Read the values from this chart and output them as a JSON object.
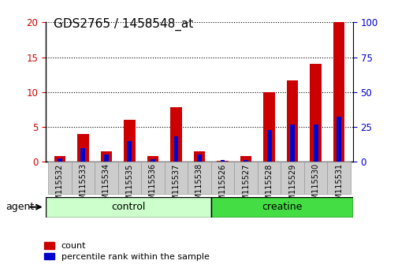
{
  "title": "GDS2765 / 1458548_at",
  "samples": [
    "GSM115532",
    "GSM115533",
    "GSM115534",
    "GSM115535",
    "GSM115536",
    "GSM115537",
    "GSM115538",
    "GSM115526",
    "GSM115527",
    "GSM115528",
    "GSM115529",
    "GSM115530",
    "GSM115531"
  ],
  "count_vals": [
    0.8,
    4.0,
    1.5,
    6.0,
    0.8,
    7.8,
    1.5,
    0.2,
    0.8,
    10.0,
    11.7,
    14.0,
    20.0
  ],
  "perc_vals_right": [
    2.5,
    10.0,
    5.0,
    15.0,
    2.0,
    18.0,
    5.0,
    1.5,
    1.5,
    22.5,
    26.5,
    26.5,
    32.5
  ],
  "count_color": "#cc0000",
  "percentile_color": "#0000cc",
  "ylim_left": [
    0,
    20
  ],
  "ylim_right": [
    0,
    100
  ],
  "yticks_left": [
    0,
    5,
    10,
    15,
    20
  ],
  "yticks_right": [
    0,
    25,
    50,
    75,
    100
  ],
  "n_control": 7,
  "n_creatine": 6,
  "control_color": "#ccffcc",
  "creatine_color": "#44dd44",
  "agent_label": "agent",
  "control_label": "control",
  "creatine_label": "creatine",
  "legend_count": "count",
  "legend_percentile": "percentile rank within the sample",
  "bar_width": 0.5,
  "perc_bar_width": 0.2,
  "tick_label_color_left": "#cc0000",
  "tick_label_color_right": "#0000cc",
  "background_color": "#ffffff",
  "xtick_bg_color": "#cccccc"
}
